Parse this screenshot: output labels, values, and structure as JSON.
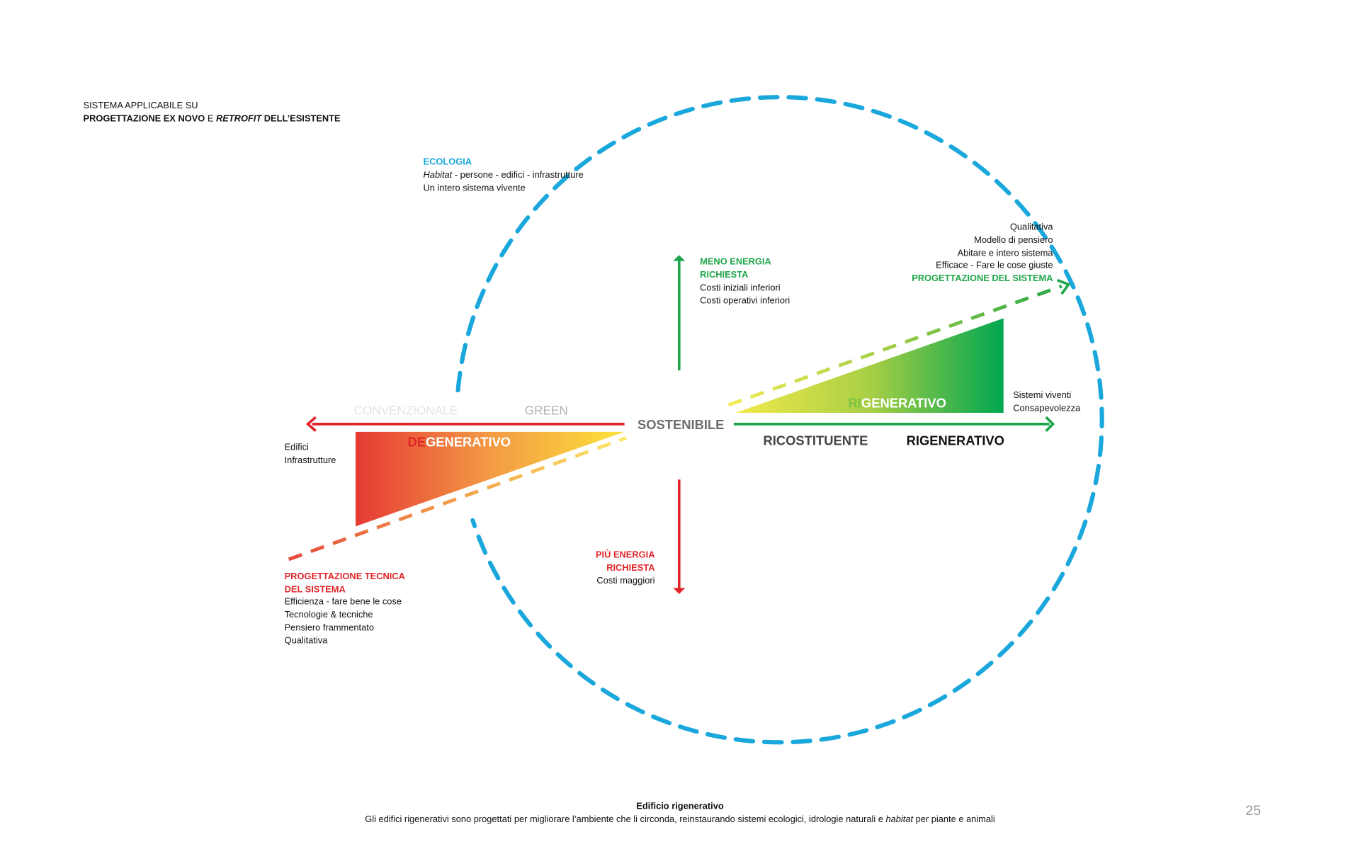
{
  "header": {
    "line1": "SISTEMA APPLICABILE SU",
    "line2_a": "PROGETTAZIONE EX NOVO",
    "line2_b": " E ",
    "line2_c": "RETROFIT",
    "line2_d": " DELL’ESISTENTE"
  },
  "ecologia": {
    "title": "ECOLOGIA",
    "line1_italic": "Habitat",
    "line1_rest": " - persone - edifici - infrastrutture",
    "line2": "Un intero sistema vivente"
  },
  "top_right": {
    "lines": [
      "Qualitativa",
      "Modello di pensiero",
      "Abitare e intero sistema",
      "Efficace - Fare le cose giuste"
    ],
    "title": "PROGETTAZIONE DEL SISTEMA"
  },
  "meno_energia": {
    "title1": "MENO ENERGIA",
    "title2": "RICHIESTA",
    "lines": [
      "Costi iniziali inferiori",
      "Costi operativi inferiori"
    ]
  },
  "piu_energia": {
    "title1": "PIÙ ENERGIA",
    "title2": "RICHIESTA",
    "line": "Costi maggiori"
  },
  "axis": {
    "convenzionale": "CONVENZIONALE",
    "green": "GREEN",
    "sostenibile": "SOSTENIBILE",
    "ricostituente": "RICOSTITUENTE",
    "rigenerativo": "RIGENERATIVO"
  },
  "degenerativo": {
    "prefix": "DE",
    "rest": "GENERATIVO"
  },
  "rigenerativo_triangle": {
    "prefix": "RI",
    "rest": "GENERATIVO"
  },
  "left_labels": [
    "Edifici",
    "Infrastrutture"
  ],
  "right_labels": [
    "Sistemi viventi",
    "Consapevolezza"
  ],
  "bottom_left": {
    "title1": "PROGETTAZIONE TECNICA",
    "title2": "DEL SISTEMA",
    "lines": [
      "Efficienza - fare bene le cose",
      "Tecnologie & tecniche",
      "Pensiero frammentato",
      "Qualitativa"
    ]
  },
  "footer": {
    "title": "Edificio rigenerativo",
    "caption_a": "Gli edifici rigenerativi sono progettati per migliorare l’ambiente che li circonda, reinstaurando sistemi ecologici, idrologie naturali e ",
    "caption_italic": "habitat",
    "caption_b": " per piante e animali",
    "page_number": "25"
  },
  "colors": {
    "circle": "#1aa7dc",
    "red": "#e0262b",
    "green": "#1fa64a",
    "yellow": "#f5e23a",
    "gray": "#6d6d6d"
  }
}
